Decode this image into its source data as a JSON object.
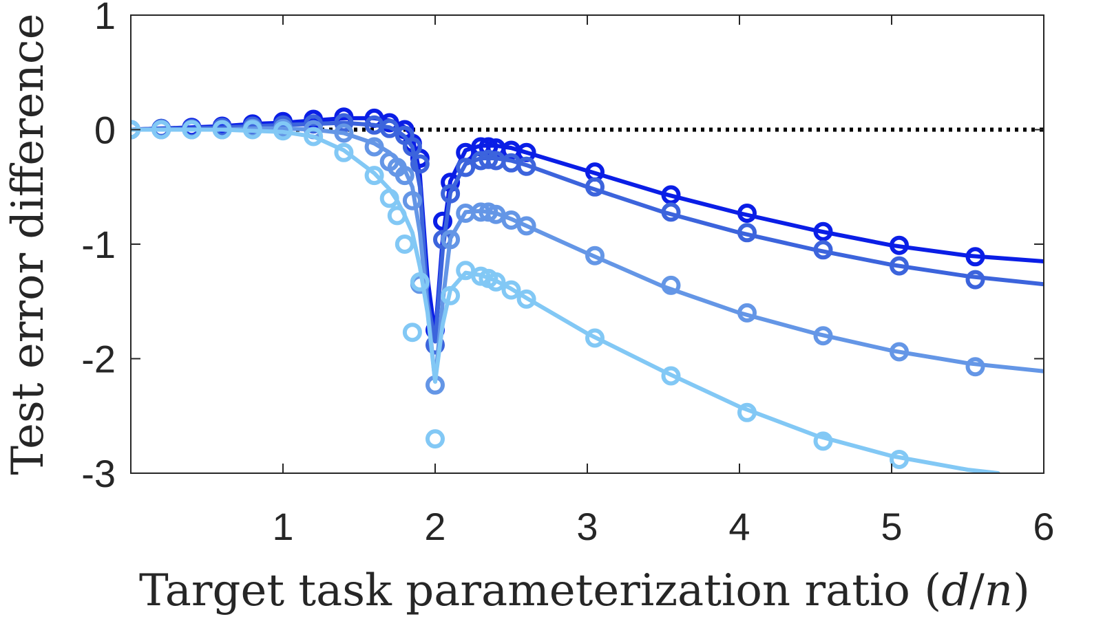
{
  "chart_data": {
    "type": "line",
    "title": "",
    "xlabel": "Target task parameterization ratio (d/n)",
    "xlabel_parts": {
      "text": "Target task parameterization ratio (",
      "var_d": "d",
      "slash": "/",
      "var_n": "n",
      "close": ")"
    },
    "ylabel": "Test error difference",
    "xlim": [
      0,
      6
    ],
    "ylim": [
      -3,
      1
    ],
    "xticks": [
      1,
      2,
      3,
      4,
      5,
      6
    ],
    "xtick_labels": [
      "1",
      "2",
      "3",
      "4",
      "5",
      "6"
    ],
    "yticks": [
      -3,
      -2,
      -1,
      0,
      1
    ],
    "ytick_labels": [
      "-3",
      "-2",
      "-1",
      "0",
      "1"
    ],
    "grid": false,
    "legend": "none",
    "reference_line": {
      "y": 0,
      "style": "dotted",
      "color": "#000000"
    },
    "series": [
      {
        "name": "series-1",
        "color": "#0a1ee6",
        "line": {
          "x": [
            0,
            0.2,
            0.4,
            0.6,
            0.8,
            1.0,
            1.2,
            1.4,
            1.6,
            1.7,
            1.75,
            1.8,
            1.85,
            1.9,
            1.95,
            2.0,
            2.05,
            2.1,
            2.2,
            2.3,
            2.4,
            2.5,
            2.6,
            3.0,
            3.5,
            4.0,
            4.5,
            5.0,
            5.5,
            6.0
          ],
          "y": [
            0,
            0.01,
            0.02,
            0.03,
            0.05,
            0.06,
            0.08,
            0.1,
            0.1,
            0.08,
            0.06,
            0.02,
            -0.05,
            -0.4,
            -1.3,
            -1.8,
            -0.95,
            -0.45,
            -0.18,
            -0.14,
            -0.14,
            -0.16,
            -0.2,
            -0.36,
            -0.56,
            -0.73,
            -0.88,
            -1.01,
            -1.1,
            -1.15
          ]
        },
        "markers": {
          "x": [
            0,
            0.2,
            0.4,
            0.6,
            0.8,
            1.0,
            1.2,
            1.4,
            1.6,
            1.7,
            1.8,
            1.85,
            1.9,
            2.0,
            2.05,
            2.1,
            2.2,
            2.3,
            2.35,
            2.4,
            2.5,
            2.6,
            3.05,
            3.55,
            4.05,
            4.55,
            5.05,
            5.55
          ],
          "y": [
            0,
            0.01,
            0.02,
            0.03,
            0.05,
            0.07,
            0.09,
            0.11,
            0.1,
            0.06,
            0.0,
            -0.12,
            -0.25,
            -1.75,
            -0.8,
            -0.46,
            -0.2,
            -0.15,
            -0.15,
            -0.16,
            -0.18,
            -0.2,
            -0.37,
            -0.57,
            -0.73,
            -0.89,
            -1.01,
            -1.11
          ]
        }
      },
      {
        "name": "series-2",
        "color": "#3c64dc",
        "line": {
          "x": [
            0,
            0.2,
            0.4,
            0.6,
            0.8,
            1.0,
            1.2,
            1.4,
            1.6,
            1.7,
            1.75,
            1.8,
            1.85,
            1.9,
            1.95,
            2.0,
            2.05,
            2.1,
            2.2,
            2.3,
            2.4,
            2.5,
            2.6,
            3.0,
            3.5,
            4.0,
            4.5,
            5.0,
            5.5,
            6.0
          ],
          "y": [
            0,
            0.01,
            0.01,
            0.02,
            0.03,
            0.04,
            0.05,
            0.06,
            0.04,
            0.02,
            -0.01,
            -0.06,
            -0.15,
            -0.5,
            -1.5,
            -1.85,
            -1.05,
            -0.55,
            -0.3,
            -0.25,
            -0.25,
            -0.27,
            -0.31,
            -0.5,
            -0.72,
            -0.9,
            -1.05,
            -1.18,
            -1.28,
            -1.35
          ]
        },
        "markers": {
          "x": [
            0,
            0.2,
            0.4,
            0.6,
            0.8,
            1.0,
            1.2,
            1.4,
            1.6,
            1.7,
            1.8,
            1.85,
            1.9,
            2.0,
            2.05,
            2.1,
            2.2,
            2.3,
            2.35,
            2.4,
            2.5,
            2.6,
            3.05,
            3.55,
            4.05,
            4.55,
            5.05,
            5.55
          ],
          "y": [
            0,
            0.01,
            0.01,
            0.02,
            0.03,
            0.04,
            0.05,
            0.06,
            0.04,
            0.01,
            -0.05,
            -0.15,
            -0.3,
            -1.88,
            -0.96,
            -0.56,
            -0.33,
            -0.27,
            -0.26,
            -0.27,
            -0.29,
            -0.32,
            -0.5,
            -0.72,
            -0.9,
            -1.05,
            -1.19,
            -1.31
          ]
        }
      },
      {
        "name": "series-3",
        "color": "#6496e6",
        "line": {
          "x": [
            0,
            0.2,
            0.4,
            0.6,
            0.8,
            1.0,
            1.2,
            1.4,
            1.6,
            1.7,
            1.75,
            1.8,
            1.85,
            1.9,
            1.95,
            2.0,
            2.05,
            2.1,
            2.2,
            2.3,
            2.4,
            2.5,
            2.6,
            3.0,
            3.5,
            4.0,
            4.5,
            5.0,
            5.5,
            6.0
          ],
          "y": [
            0,
            0.0,
            0.0,
            0.0,
            0.01,
            0.01,
            0.0,
            -0.03,
            -0.12,
            -0.2,
            -0.26,
            -0.35,
            -0.5,
            -0.9,
            -1.55,
            -2.2,
            -1.5,
            -0.95,
            -0.72,
            -0.71,
            -0.73,
            -0.78,
            -0.84,
            -1.08,
            -1.37,
            -1.6,
            -1.78,
            -1.93,
            -2.04,
            -2.11
          ]
        },
        "markers": {
          "x": [
            0,
            0.2,
            0.4,
            0.6,
            0.8,
            1.0,
            1.2,
            1.4,
            1.6,
            1.7,
            1.75,
            1.8,
            1.85,
            1.9,
            2.0,
            2.1,
            2.2,
            2.3,
            2.35,
            2.4,
            2.5,
            2.6,
            3.05,
            3.55,
            4.05,
            4.55,
            5.05,
            5.55
          ],
          "y": [
            0,
            0.0,
            0.0,
            0.0,
            0.01,
            0.01,
            0.0,
            -0.03,
            -0.15,
            -0.28,
            -0.33,
            -0.4,
            -0.62,
            -1.35,
            -2.23,
            -0.96,
            -0.73,
            -0.72,
            -0.72,
            -0.74,
            -0.79,
            -0.84,
            -1.1,
            -1.36,
            -1.6,
            -1.8,
            -1.94,
            -2.07
          ]
        }
      },
      {
        "name": "series-4",
        "color": "#82c8f5",
        "line": {
          "x": [
            0,
            0.2,
            0.4,
            0.6,
            0.8,
            1.0,
            1.2,
            1.4,
            1.6,
            1.7,
            1.75,
            1.8,
            1.85,
            1.9,
            1.95,
            2.0,
            2.05,
            2.1,
            2.2,
            2.3,
            2.4,
            2.5,
            2.6,
            3.0,
            3.5,
            4.0,
            4.5,
            5.0,
            5.5,
            5.7
          ],
          "y": [
            0,
            0.0,
            0.0,
            0.0,
            -0.01,
            -0.02,
            -0.06,
            -0.18,
            -0.38,
            -0.52,
            -0.62,
            -0.75,
            -0.9,
            -1.2,
            -1.6,
            -2.2,
            -1.7,
            -1.4,
            -1.25,
            -1.27,
            -1.32,
            -1.39,
            -1.47,
            -1.78,
            -2.11,
            -2.42,
            -2.67,
            -2.85,
            -2.97,
            -3.0
          ]
        },
        "markers": {
          "x": [
            0,
            0.2,
            0.4,
            0.6,
            0.8,
            1.0,
            1.2,
            1.4,
            1.6,
            1.7,
            1.75,
            1.8,
            1.85,
            1.9,
            2.0,
            2.1,
            2.2,
            2.3,
            2.35,
            2.4,
            2.5,
            2.6,
            3.05,
            3.55,
            4.05,
            4.55,
            5.05
          ],
          "y": [
            0,
            0.0,
            0.0,
            0.0,
            0.0,
            -0.01,
            -0.06,
            -0.2,
            -0.4,
            -0.6,
            -0.75,
            -1.0,
            -1.77,
            -1.33,
            -2.7,
            -1.45,
            -1.23,
            -1.28,
            -1.3,
            -1.33,
            -1.4,
            -1.48,
            -1.82,
            -2.15,
            -2.47,
            -2.72,
            -2.88
          ]
        }
      }
    ]
  }
}
